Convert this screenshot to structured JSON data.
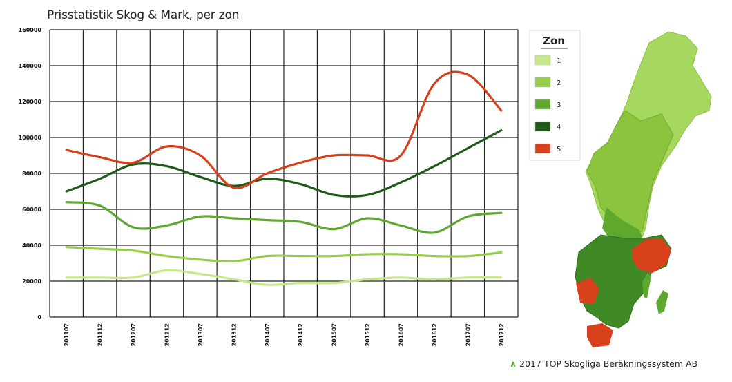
{
  "title": "Prisstatistik Skog & Mark, per zon",
  "credit": "2017 TOP Skogliga Beräkningssystem AB",
  "legend": {
    "title": "Zon",
    "items": [
      {
        "label": "1",
        "color": "#c6e88a"
      },
      {
        "label": "2",
        "color": "#98cd4c"
      },
      {
        "label": "3",
        "color": "#5ea82e"
      },
      {
        "label": "4",
        "color": "#1f5a1a"
      },
      {
        "label": "5",
        "color": "#d8401c"
      }
    ]
  },
  "map": {
    "icon": "sweden-zone-map"
  },
  "chart_data": {
    "type": "line",
    "title": "Prisstatistik Skog & Mark, per zon",
    "xlabel": "",
    "ylabel": "",
    "ylim": [
      0,
      160000
    ],
    "yticks": [
      0,
      20000,
      40000,
      60000,
      80000,
      100000,
      120000,
      140000,
      160000
    ],
    "grid": true,
    "legend_position": "right",
    "categories": [
      "201107",
      "201112",
      "201207",
      "201212",
      "201307",
      "201312",
      "201407",
      "201412",
      "201507",
      "201512",
      "201607",
      "201612",
      "201707",
      "201712"
    ],
    "series": [
      {
        "name": "1",
        "color": "#c6e88a",
        "values": [
          22000,
          22000,
          22000,
          26000,
          24000,
          21000,
          18000,
          19000,
          19000,
          21000,
          22000,
          21000,
          22000,
          22000
        ]
      },
      {
        "name": "2",
        "color": "#98cd4c",
        "values": [
          39000,
          38000,
          37000,
          34000,
          32000,
          31000,
          34000,
          34000,
          34000,
          35000,
          35000,
          34000,
          34000,
          36000
        ]
      },
      {
        "name": "3",
        "color": "#5ea82e",
        "values": [
          64000,
          62000,
          50000,
          51000,
          56000,
          55000,
          54000,
          53000,
          49000,
          55000,
          51000,
          47000,
          56000,
          58000
        ]
      },
      {
        "name": "4",
        "color": "#1f5a1a",
        "values": [
          70000,
          77000,
          85000,
          84000,
          78000,
          73000,
          77000,
          74000,
          68000,
          68000,
          75000,
          84000,
          94000,
          104000
        ]
      },
      {
        "name": "5",
        "color": "#d8401c",
        "values": [
          93000,
          89000,
          86000,
          95000,
          90000,
          72000,
          80000,
          86000,
          90000,
          90000,
          90000,
          130000,
          135000,
          115000
        ]
      }
    ]
  }
}
